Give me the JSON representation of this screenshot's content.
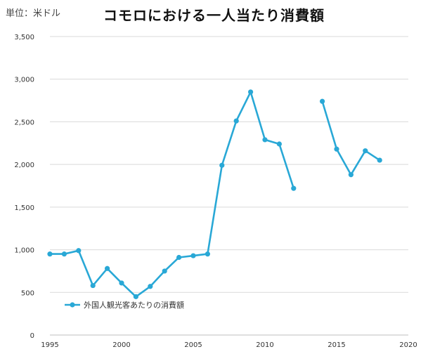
{
  "unit_label": "単位：米ドル",
  "title": "コモロにおける一人当たり消費額",
  "colors": {
    "series": "#29a8d6",
    "grid": "#d9d9d9",
    "axis": "#bfbfbf"
  },
  "chart_data": {
    "type": "line",
    "title": "コモロにおける一人当たり消費額",
    "xlabel": "",
    "ylabel": "",
    "xlim": [
      1995,
      2020
    ],
    "ylim": [
      0,
      3500
    ],
    "grid": true,
    "legend_position": "bottom-left",
    "x_ticks": [
      1995,
      2000,
      2005,
      2010,
      2015,
      2020
    ],
    "y_ticks": [
      0,
      500,
      1000,
      1500,
      2000,
      2500,
      3000,
      3500
    ],
    "y_tick_labels": [
      "0",
      "500",
      "1,000",
      "1,500",
      "2,000",
      "2,500",
      "3,000",
      "3,500"
    ],
    "series": [
      {
        "name": "外国人観光客あたりの消費額",
        "points": [
          {
            "x": 1995,
            "y": 950
          },
          {
            "x": 1996,
            "y": 950
          },
          {
            "x": 1997,
            "y": 990
          },
          {
            "x": 1998,
            "y": 580
          },
          {
            "x": 1999,
            "y": 780
          },
          {
            "x": 2000,
            "y": 610
          },
          {
            "x": 2001,
            "y": 450
          },
          {
            "x": 2002,
            "y": 570
          },
          {
            "x": 2003,
            "y": 750
          },
          {
            "x": 2004,
            "y": 910
          },
          {
            "x": 2005,
            "y": 930
          },
          {
            "x": 2006,
            "y": 950
          },
          {
            "x": 2007,
            "y": 1990
          },
          {
            "x": 2008,
            "y": 2510
          },
          {
            "x": 2009,
            "y": 2850
          },
          {
            "x": 2010,
            "y": 2290
          },
          {
            "x": 2011,
            "y": 2240
          },
          {
            "x": 2012,
            "y": 1720
          },
          {
            "x": 2013,
            "y": null
          },
          {
            "x": 2014,
            "y": 2740
          },
          {
            "x": 2015,
            "y": 2180
          },
          {
            "x": 2016,
            "y": 1880
          },
          {
            "x": 2017,
            "y": 2160
          },
          {
            "x": 2018,
            "y": 2050
          }
        ]
      }
    ]
  }
}
